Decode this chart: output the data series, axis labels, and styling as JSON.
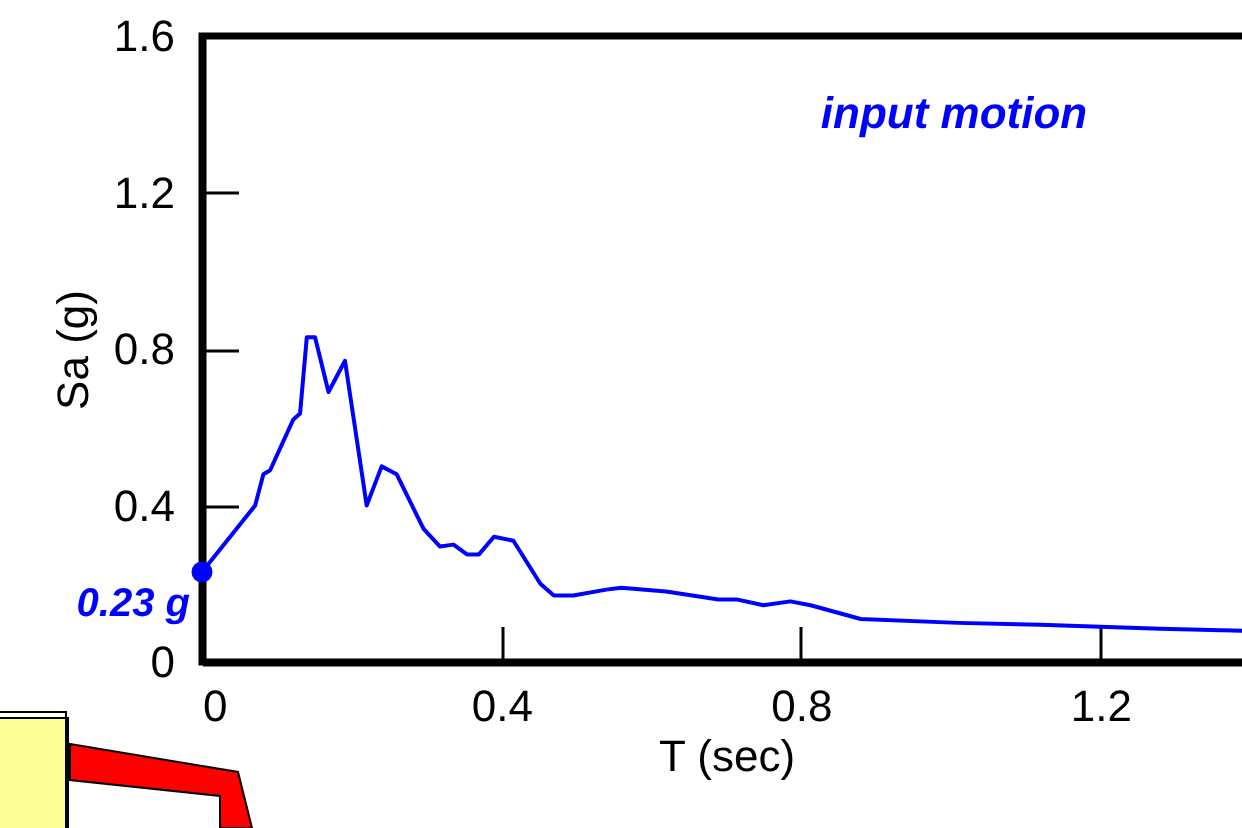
{
  "chart_data": {
    "type": "line",
    "xlabel": "T (sec)",
    "ylabel": "Sa (g)",
    "x": [
      0,
      0.071,
      0.082,
      0.091,
      0.122,
      0.131,
      0.14,
      0.151,
      0.169,
      0.191,
      0.22,
      0.24,
      0.26,
      0.296,
      0.318,
      0.336,
      0.354,
      0.37,
      0.39,
      0.416,
      0.452,
      0.47,
      0.496,
      0.54,
      0.56,
      0.62,
      0.69,
      0.714,
      0.75,
      0.786,
      0.813,
      0.88,
      1.01,
      1.12,
      1.28,
      1.39
    ],
    "series": [
      {
        "color": "#0000ff",
        "values": [
          0.23,
          0.4,
          0.48,
          0.49,
          0.62,
          0.635,
          0.83,
          0.83,
          0.69,
          0.77,
          0.4,
          0.5,
          0.48,
          0.34,
          0.295,
          0.3,
          0.275,
          0.275,
          0.32,
          0.31,
          0.2,
          0.17,
          0.17,
          0.185,
          0.19,
          0.18,
          0.16,
          0.16,
          0.145,
          0.155,
          0.145,
          0.11,
          0.1,
          0.095,
          0.085,
          0.08
        ]
      }
    ],
    "xlim": [
      0,
      1.4
    ],
    "ylim": [
      0,
      1.6
    ],
    "xticks": [
      0,
      0.4,
      0.8,
      1.2
    ],
    "yticks": [
      0,
      0.4,
      0.8,
      1.2,
      1.6
    ],
    "grid": false,
    "marker": "none",
    "line_style": "solid",
    "annotations": [
      "input motion",
      {
        "text": "0.23 g",
        "x": 0,
        "y": 0.23
      }
    ]
  }
}
